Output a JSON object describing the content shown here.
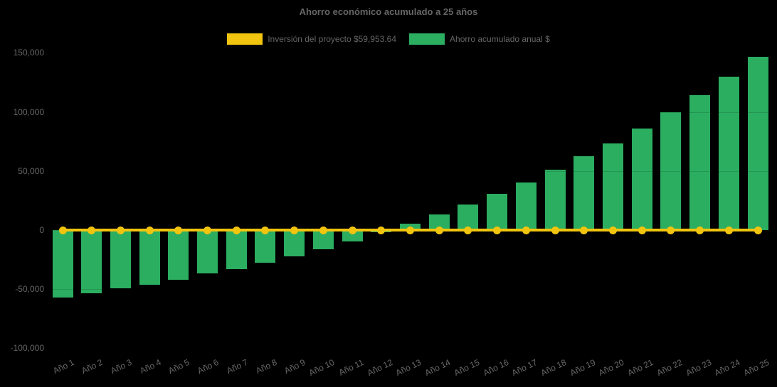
{
  "page": {
    "background_color": "#000000",
    "text_color": "#666666"
  },
  "chart_data": {
    "type": "bar",
    "title": "Ahorro económico acumulado a 25 años",
    "xlabel": "",
    "ylabel": "",
    "legend_position": "top",
    "grid": "horizontal gridlines, faint dark, visible only over bars",
    "ylim": [
      -100000,
      150000
    ],
    "ytick_values": [
      150000,
      100000,
      50000,
      0,
      -50000,
      -100000
    ],
    "ytick_labels": [
      "150,000",
      "100,000",
      "50,000",
      "0",
      "-50,000",
      "-100,000"
    ],
    "categories": [
      "Año 1",
      "Año 2",
      "Año 3",
      "Año 4",
      "Año 5",
      "Año 6",
      "Año 7",
      "Año 8",
      "Año 9",
      "Año 10",
      "Año 11",
      "Año 12",
      "Año 13",
      "Año 14",
      "Año 15",
      "Año 16",
      "Año 17",
      "Año 18",
      "Año 19",
      "Año 20",
      "Año 21",
      "Año 22",
      "Año 23",
      "Año 24",
      "Año 25"
    ],
    "series": [
      {
        "name": "Inversión del proyecto $59,953.64",
        "type": "line",
        "color": "#F1C40F",
        "point_style": "circle",
        "values": [
          0,
          0,
          0,
          0,
          0,
          0,
          0,
          0,
          0,
          0,
          0,
          0,
          0,
          0,
          0,
          0,
          0,
          0,
          0,
          0,
          0,
          0,
          0,
          0,
          0
        ]
      },
      {
        "name": "Ahorro acumulado anual $",
        "type": "bar",
        "color": "#2BAE60",
        "values_note": "cumulative savings, estimated from gridlines",
        "values": [
          -56800,
          -53400,
          -49300,
          -46200,
          -41800,
          -36900,
          -32800,
          -27500,
          -22300,
          -16300,
          -9400,
          -1800,
          5700,
          13100,
          21700,
          30600,
          40200,
          51000,
          62300,
          73500,
          86200,
          99800,
          114200,
          129800,
          146500
        ]
      }
    ]
  }
}
